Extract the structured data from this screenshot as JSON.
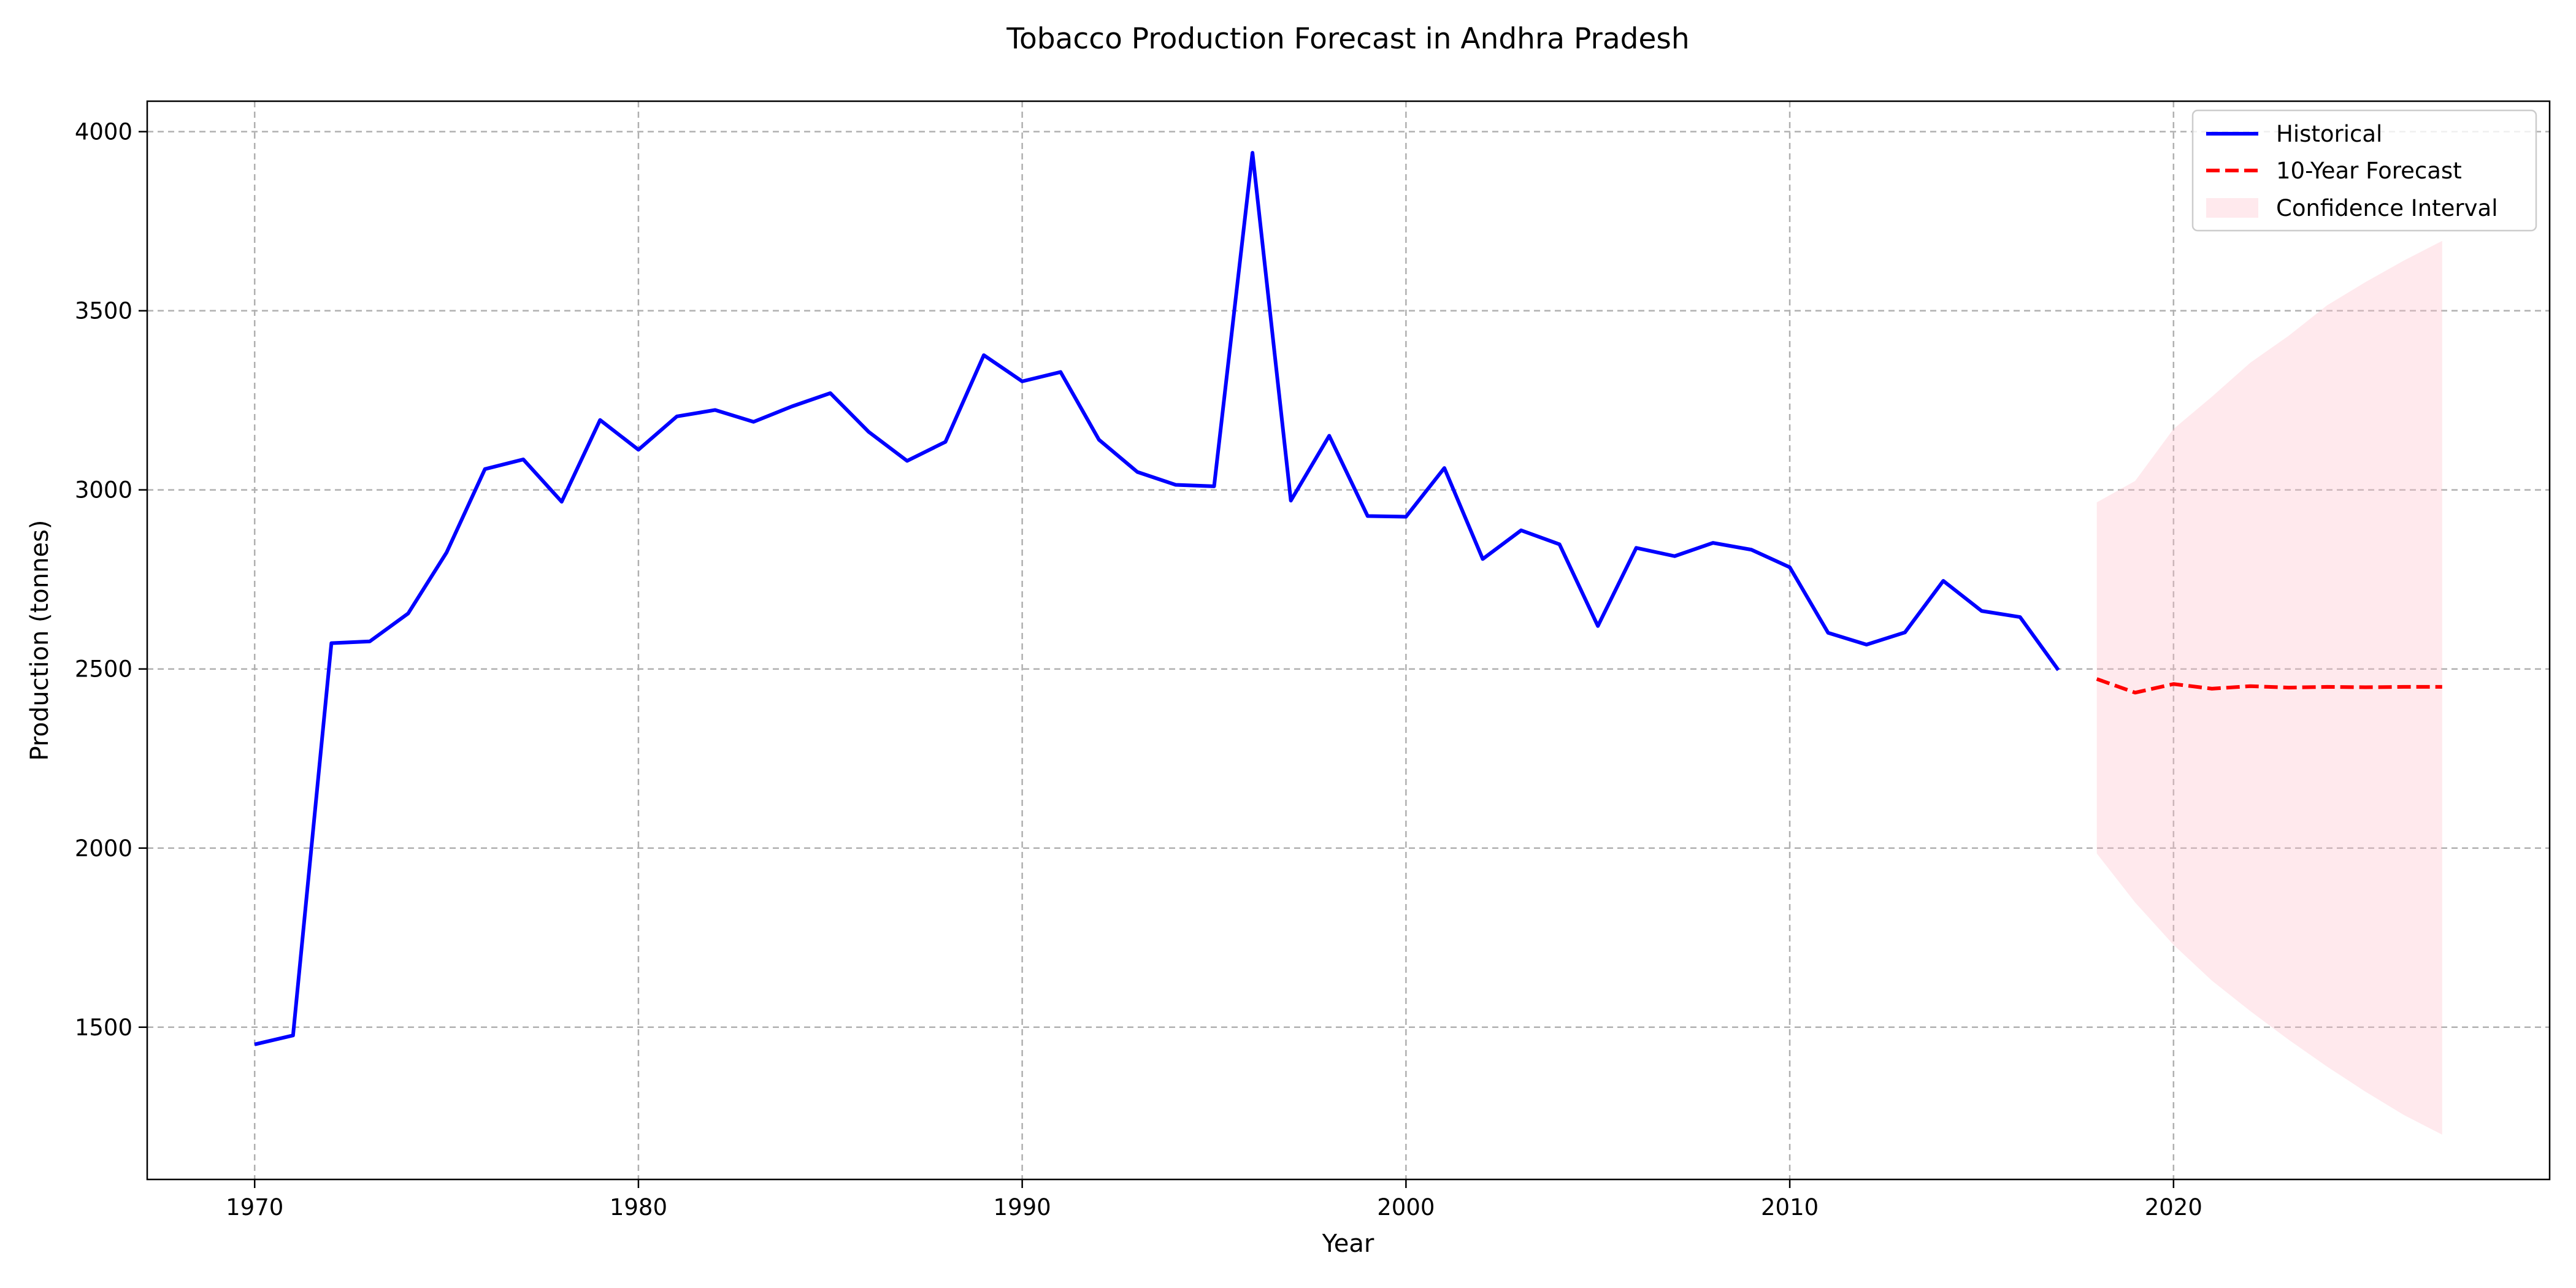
{
  "chart_data": {
    "type": "line",
    "title": "Tobacco Production Forecast in Andhra Pradesh",
    "xlabel": "Year",
    "ylabel": "Production (tonnes)",
    "xlim": [
      1967.2,
      2029.8
    ],
    "ylim": [
      1075,
      4085
    ],
    "x_ticks": [
      1970,
      1980,
      1990,
      2000,
      2010,
      2020
    ],
    "y_ticks": [
      1500,
      2000,
      2500,
      3000,
      3500,
      4000
    ],
    "grid": true,
    "legend_position": "top-right",
    "series": [
      {
        "name": "Historical",
        "color": "#0000ff",
        "style": "solid",
        "x": [
          1970,
          1971,
          1972,
          1973,
          1974,
          1975,
          1976,
          1977,
          1978,
          1979,
          1980,
          1981,
          1982,
          1983,
          1984,
          1985,
          1986,
          1987,
          1988,
          1989,
          1990,
          1991,
          1992,
          1993,
          1994,
          1995,
          1996,
          1997,
          1998,
          1999,
          2000,
          2001,
          2002,
          2003,
          2004,
          2005,
          2006,
          2007,
          2008,
          2009,
          2010,
          2011,
          2012,
          2013,
          2014,
          2015,
          2016,
          2017
        ],
        "values": [
          1452,
          1477,
          2572,
          2577,
          2655,
          2825,
          3058,
          3085,
          2967,
          3195,
          3112,
          3205,
          3223,
          3190,
          3233,
          3270,
          3162,
          3081,
          3134,
          3376,
          3303,
          3329,
          3140,
          3050,
          3014,
          3010,
          3941,
          2970,
          3151,
          2927,
          2925,
          3061,
          2807,
          2887,
          2848,
          2620,
          2838,
          2815,
          2852,
          2833,
          2784,
          2601,
          2568,
          2602,
          2746,
          2662,
          2645,
          2497
        ]
      },
      {
        "name": "10-Year Forecast",
        "color": "#ff0000",
        "style": "dashed",
        "x": [
          2018,
          2019,
          2020,
          2021,
          2022,
          2023,
          2024,
          2025,
          2026,
          2027
        ],
        "values": [
          2472,
          2434,
          2458,
          2445,
          2452,
          2448,
          2450,
          2449,
          2450,
          2450
        ]
      }
    ],
    "confidence_interval": {
      "name": "Confidence Interval",
      "color": "#ffc0cb",
      "x": [
        2018,
        2019,
        2020,
        2021,
        2022,
        2023,
        2024,
        2025,
        2026,
        2027
      ],
      "lower": [
        1985,
        1848,
        1730,
        1630,
        1545,
        1465,
        1390,
        1320,
        1255,
        1200
      ],
      "upper": [
        2965,
        3025,
        3170,
        3260,
        3355,
        3430,
        3515,
        3580,
        3640,
        3695
      ]
    }
  }
}
